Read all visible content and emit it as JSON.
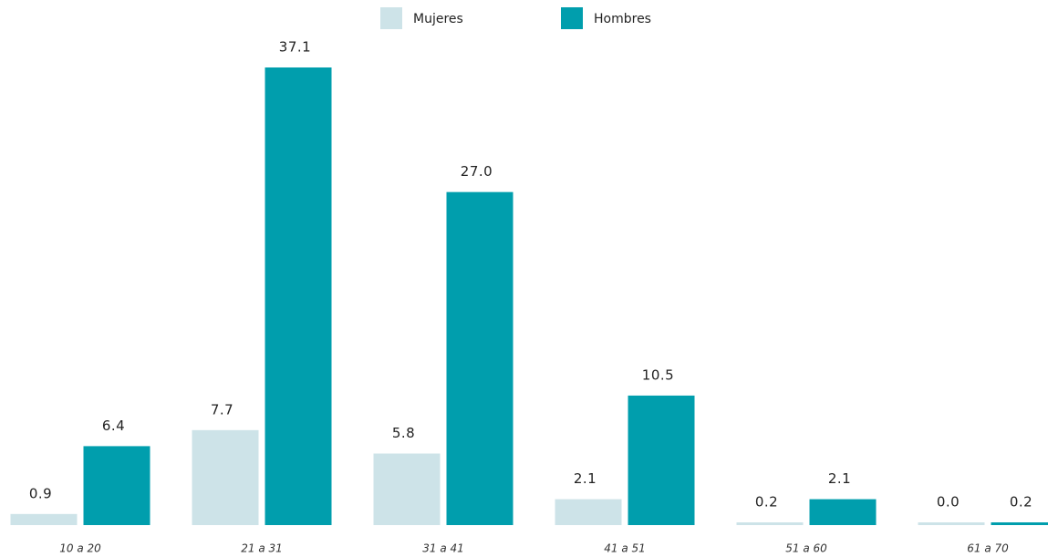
{
  "chart_data": {
    "type": "bar",
    "categories": [
      "10 a 20",
      "21 a 31",
      "31 a 41",
      "41 a 51",
      "51 a 60",
      "61 a 70"
    ],
    "series": [
      {
        "name": "Mujeres",
        "color": "#cde3e8",
        "values": [
          0.9,
          7.7,
          5.8,
          2.1,
          0.2,
          0
        ],
        "value_labels": [
          "0.9",
          "7.7",
          "5.8",
          "2.1",
          "0.2",
          "0.0"
        ]
      },
      {
        "name": "Hombres",
        "color": "#009ead",
        "values": [
          6.4,
          37.1,
          27,
          10.5,
          2.1,
          0.2
        ],
        "value_labels": [
          "6.4",
          "37.1",
          "27.0",
          "10.5",
          "2.1",
          "0.2"
        ]
      }
    ]
  }
}
